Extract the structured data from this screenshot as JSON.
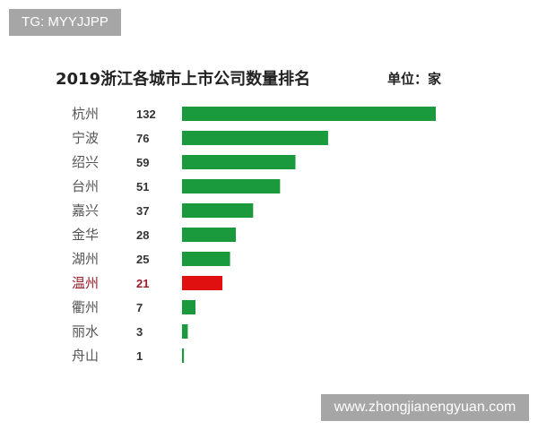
{
  "watermarks": {
    "top_left": "TG: MYYJJPP",
    "bottom_right": "www.zhongjianengyuan.com"
  },
  "chart_data": {
    "type": "bar",
    "orientation": "horizontal",
    "title": "2019浙江各城市上市公司数量排名",
    "unit_label": "单位：家",
    "categories": [
      "杭州",
      "宁波",
      "绍兴",
      "台州",
      "嘉兴",
      "金华",
      "湖州",
      "温州",
      "衢州",
      "丽水",
      "舟山"
    ],
    "values": [
      132,
      76,
      59,
      51,
      37,
      28,
      25,
      21,
      7,
      3,
      1
    ],
    "highlight": "温州",
    "colors": {
      "default": "#1a9a3c",
      "highlight": "#e01010",
      "highlight_text": "#9b1c2a"
    },
    "grid": false
  }
}
